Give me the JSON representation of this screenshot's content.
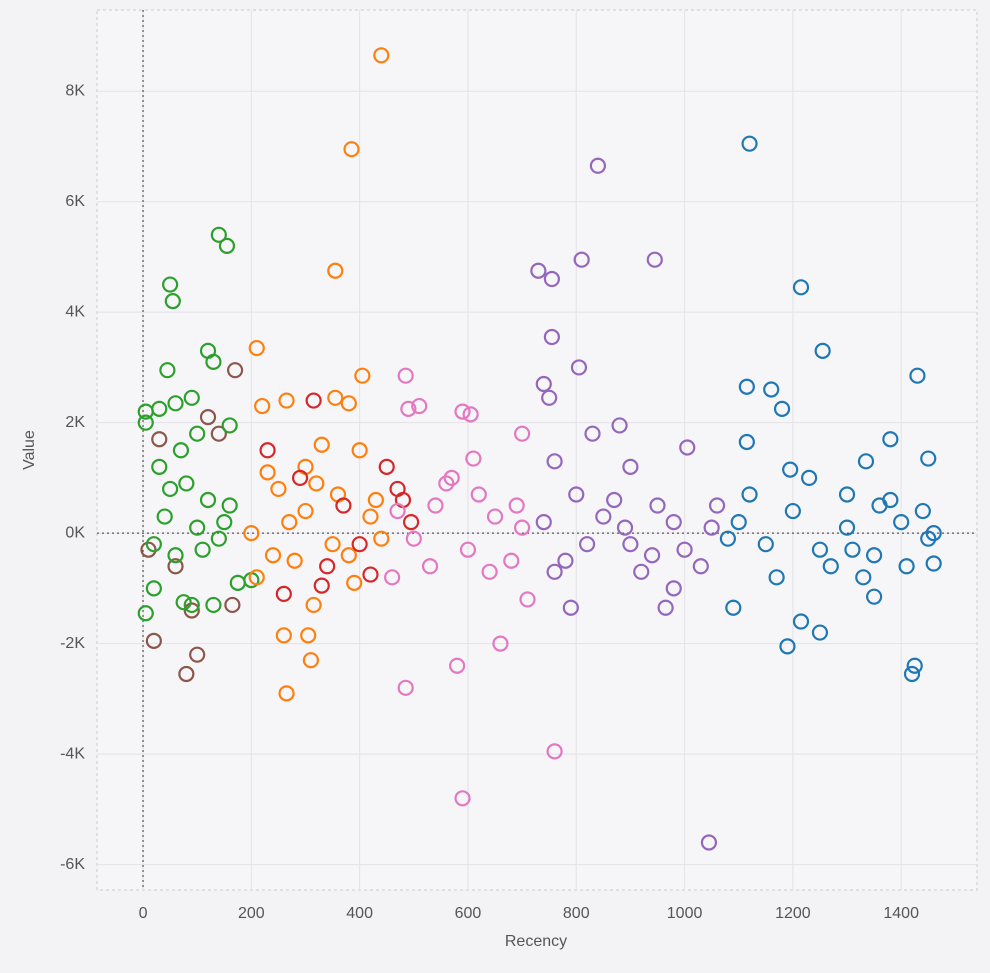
{
  "chart_data": {
    "type": "scatter",
    "x_label": "Recency",
    "y_label": "Value",
    "xlim": [
      -85,
      1540
    ],
    "ylim": [
      -6460,
      9470
    ],
    "xticks": [
      0,
      200,
      400,
      600,
      800,
      1000,
      1200,
      1400
    ],
    "yticks": [
      {
        "value": -6000,
        "label": "-6K"
      },
      {
        "value": -4000,
        "label": "-4K"
      },
      {
        "value": -2000,
        "label": "-2K"
      },
      {
        "value": 0,
        "label": "0K"
      },
      {
        "value": 2000,
        "label": "2K"
      },
      {
        "value": 4000,
        "label": "4K"
      },
      {
        "value": 6000,
        "label": "6K"
      },
      {
        "value": 8000,
        "label": "8K"
      }
    ],
    "grid": true,
    "series": [
      {
        "color": "#8c564b",
        "x": [
          20,
          80,
          100,
          90,
          140,
          170,
          30,
          60,
          10,
          120,
          165
        ],
        "values": [
          -1950,
          -2550,
          -2200,
          -1400,
          1800,
          2950,
          1700,
          -600,
          -300,
          2100,
          -1300
        ]
      },
      {
        "color": "#2ca02c",
        "x": [
          5,
          5,
          30,
          45,
          50,
          55,
          60,
          100,
          120,
          130,
          140,
          155,
          160,
          90,
          5,
          20,
          75,
          90,
          130,
          175,
          200,
          80,
          120,
          40,
          150,
          20,
          60,
          110,
          160,
          30,
          70,
          140,
          100,
          50
        ],
        "values": [
          2200,
          2000,
          2250,
          2950,
          4500,
          4200,
          2350,
          1800,
          3300,
          3100,
          5400,
          5200,
          1950,
          2450,
          -1450,
          -1000,
          -1250,
          -1300,
          -1300,
          -900,
          -850,
          900,
          600,
          300,
          200,
          -200,
          -400,
          -300,
          500,
          1200,
          1500,
          -100,
          100,
          800
        ]
      },
      {
        "color": "#ff7f0e",
        "x": [
          440,
          385,
          355,
          210,
          265,
          355,
          405,
          380,
          260,
          310,
          265,
          305,
          315,
          390,
          220,
          250,
          300,
          350,
          420,
          280,
          230,
          330,
          400,
          200,
          270,
          360,
          440,
          240,
          320,
          380,
          300,
          430,
          210
        ],
        "values": [
          8650,
          6950,
          4750,
          3350,
          2400,
          2450,
          2850,
          2350,
          -1850,
          -2300,
          -2900,
          -1850,
          -1300,
          -900,
          2300,
          800,
          400,
          -200,
          300,
          -500,
          1100,
          1600,
          1500,
          0,
          200,
          700,
          -100,
          -400,
          900,
          -400,
          1200,
          600,
          -800
        ]
      },
      {
        "color": "#d62728",
        "x": [
          315,
          260,
          330,
          420,
          470,
          495,
          480,
          290,
          370,
          400,
          450,
          230,
          340
        ],
        "values": [
          2400,
          -1100,
          -950,
          -750,
          800,
          200,
          600,
          1000,
          500,
          -200,
          1200,
          1500,
          -600
        ]
      },
      {
        "color": "#e377c2",
        "x": [
          485,
          490,
          510,
          605,
          590,
          700,
          610,
          485,
          580,
          660,
          760,
          590,
          710,
          460,
          540,
          600,
          650,
          500,
          560,
          680,
          620,
          700,
          470,
          530,
          570,
          640,
          690
        ],
        "values": [
          2850,
          2250,
          2300,
          2150,
          2200,
          1800,
          1350,
          -2800,
          -2400,
          -2000,
          -3950,
          -4800,
          -1200,
          -800,
          500,
          -300,
          300,
          -100,
          900,
          -500,
          700,
          100,
          400,
          -600,
          1000,
          -700,
          500
        ]
      },
      {
        "color": "#9467bd",
        "x": [
          840,
          730,
          755,
          810,
          945,
          755,
          740,
          750,
          805,
          830,
          880,
          1005,
          790,
          965,
          980,
          1045,
          900,
          760,
          780,
          850,
          900,
          950,
          1000,
          1050,
          740,
          820,
          870,
          920,
          980,
          1030,
          800,
          940,
          1060,
          760,
          890
        ],
        "values": [
          6650,
          4750,
          4600,
          4950,
          4950,
          3550,
          2700,
          2450,
          3000,
          1800,
          1950,
          1550,
          -1350,
          -1350,
          -1000,
          -5600,
          1200,
          1300,
          -500,
          300,
          -200,
          500,
          -300,
          100,
          200,
          -200,
          600,
          -700,
          200,
          -600,
          700,
          -400,
          500,
          -700,
          100
        ]
      },
      {
        "color": "#1f77b4",
        "x": [
          1120,
          1215,
          1255,
          1430,
          1115,
          1160,
          1180,
          1115,
          1380,
          1450,
          1335,
          1195,
          1090,
          1190,
          1215,
          1250,
          1350,
          1425,
          1420,
          1460,
          1170,
          1300,
          1100,
          1150,
          1200,
          1250,
          1300,
          1350,
          1400,
          1450,
          1230,
          1330,
          1380,
          1440,
          1080,
          1270,
          1310,
          1410,
          1120,
          1360,
          1460
        ],
        "values": [
          7050,
          4450,
          3300,
          2850,
          2650,
          2600,
          2250,
          1650,
          1700,
          1350,
          1300,
          1150,
          -1350,
          -2050,
          -1600,
          -1800,
          -1150,
          -2400,
          -2550,
          -550,
          -800,
          700,
          200,
          -200,
          400,
          -300,
          100,
          -400,
          200,
          -100,
          1000,
          -800,
          600,
          400,
          -100,
          -600,
          -300,
          -600,
          700,
          500,
          0
        ]
      }
    ]
  }
}
